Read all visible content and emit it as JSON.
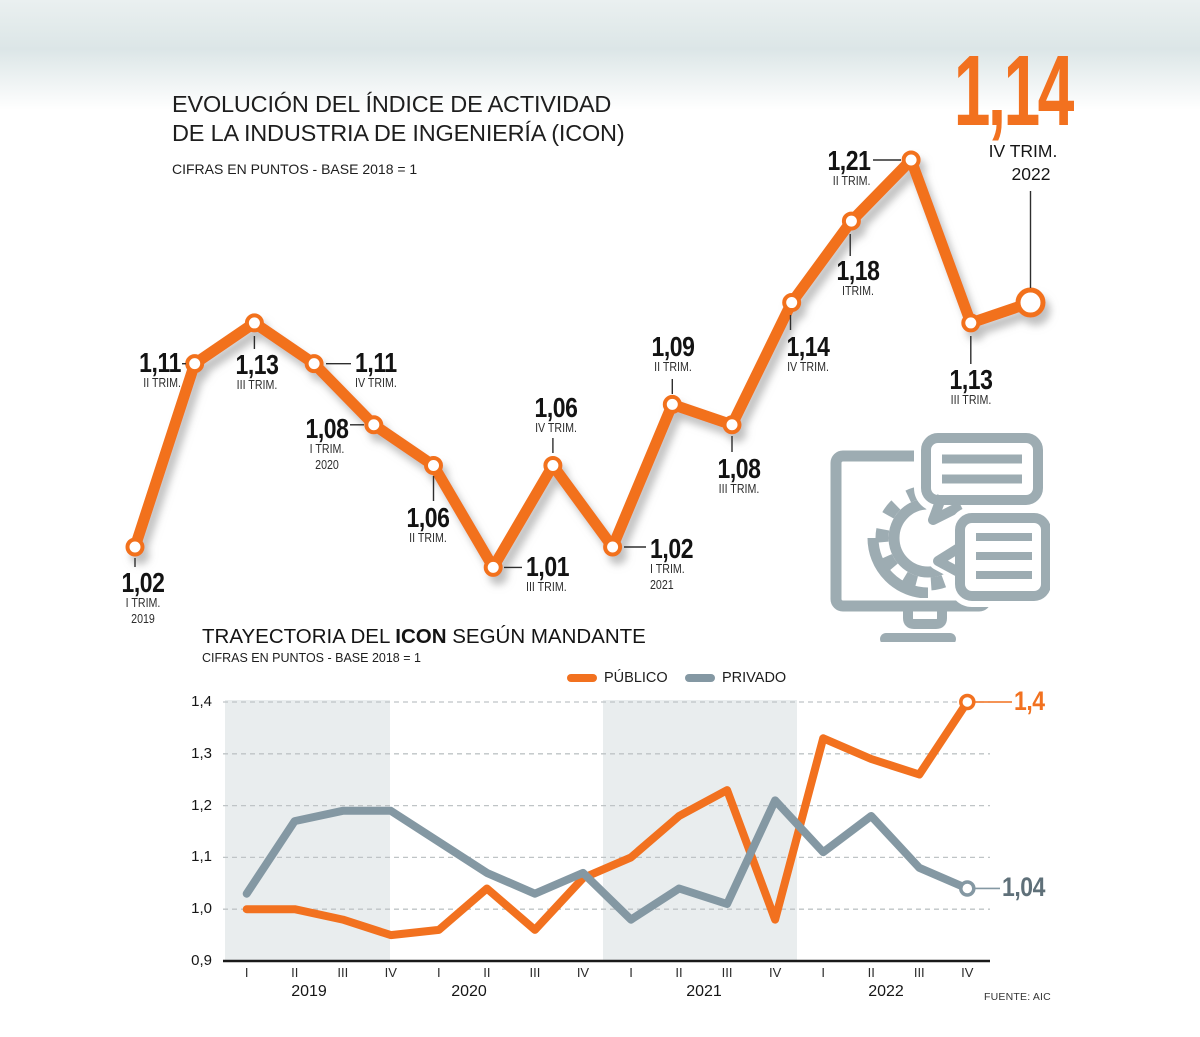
{
  "header": {
    "title_line1": "EVOLUCIÓN DEL ÍNDICE DE ACTIVIDAD",
    "title_line2": "DE LA INDUSTRIA DE INGENIERÍA (ICON)",
    "subtitle": "CIFRAS EN PUNTOS - BASE 2018 = 1"
  },
  "highlight": {
    "value": "1,14",
    "period_line1": "IV TRIM.",
    "period_line2": "2022"
  },
  "icon": {
    "name": "computer-chat-icon",
    "color": "#9DACB2"
  },
  "colors": {
    "accent_orange": "#F2711F",
    "gray_blue": "#8498A3",
    "band": "#E9EDEE",
    "end_label_gray": "#5F7079",
    "leader": "#2e2e2e"
  },
  "chart_data": [
    {
      "type": "line",
      "title": "EVOLUCIÓN DEL ÍNDICE DE ACTIVIDAD DE LA INDUSTRIA DE INGENIERÍA (ICON)",
      "subtitle": "CIFRAS EN PUNTOS - BASE 2018 = 1",
      "x": [
        "2019 I",
        "2019 II",
        "2019 III",
        "2019 IV",
        "2020 I",
        "2020 II",
        "2020 III",
        "2020 IV",
        "2021 I",
        "2021 II",
        "2021 III",
        "2021 IV",
        "2022 I",
        "2022 II",
        "2022 III",
        "2022 IV"
      ],
      "values": [
        1.02,
        1.11,
        1.13,
        1.11,
        1.08,
        1.06,
        1.01,
        1.06,
        1.02,
        1.09,
        1.08,
        1.14,
        1.18,
        1.21,
        1.13,
        1.14
      ],
      "point_labels": [
        {
          "value": "1,02",
          "trim": "I TRIM.",
          "year": "2019"
        },
        {
          "value": "1,11",
          "trim": "II TRIM.",
          "year": null
        },
        {
          "value": "1,13",
          "trim": "III TRIM.",
          "year": null
        },
        {
          "value": "1,11",
          "trim": "IV TRIM.",
          "year": null
        },
        {
          "value": "1,08",
          "trim": "I TRIM.",
          "year": "2020"
        },
        {
          "value": "1,06",
          "trim": "II TRIM.",
          "year": null
        },
        {
          "value": "1,01",
          "trim": "III TRIM.",
          "year": null
        },
        {
          "value": "1,06",
          "trim": "IV TRIM.",
          "year": null
        },
        {
          "value": "1,02",
          "trim": "I TRIM.",
          "year": "2021"
        },
        {
          "value": "1,09",
          "trim": "II TRIM.",
          "year": null
        },
        {
          "value": "1,08",
          "trim": "III TRIM.",
          "year": null
        },
        {
          "value": "1,14",
          "trim": "IV TRIM.",
          "year": null
        },
        {
          "value": "1,18",
          "trim": "ITRIM.",
          "year": null
        },
        {
          "value": "1,21",
          "trim": "II TRIM.",
          "year": null
        },
        {
          "value": "1,13",
          "trim": "III TRIM.",
          "year": null
        },
        {
          "value": "1,14",
          "trim": "IV TRIM.",
          "year": "2022"
        }
      ],
      "color": "#F2711F",
      "grid": false,
      "ylim": [
        0.95,
        1.25
      ]
    },
    {
      "type": "line",
      "title_prefix": "TRAYECTORIA DEL ",
      "title_bold": "ICON",
      "title_suffix": " SEGÚN MANDANTE",
      "subtitle": "CIFRAS EN PUNTOS - BASE 2018 = 1",
      "categories": [
        "I",
        "II",
        "III",
        "IV",
        "I",
        "II",
        "III",
        "IV",
        "I",
        "II",
        "III",
        "IV",
        "I",
        "II",
        "III",
        "IV"
      ],
      "years": [
        "2019",
        "2020",
        "2021",
        "2022"
      ],
      "series": [
        {
          "name": "PÚBLICO",
          "color": "#F2711F",
          "values": [
            1.0,
            1.0,
            0.98,
            0.95,
            0.96,
            1.04,
            0.96,
            1.06,
            1.1,
            1.18,
            1.23,
            0.98,
            1.33,
            1.29,
            1.26,
            1.4
          ]
        },
        {
          "name": "PRIVADO",
          "color": "#8498A3",
          "values": [
            1.03,
            1.17,
            1.19,
            1.19,
            1.13,
            1.07,
            1.03,
            1.07,
            0.98,
            1.04,
            1.01,
            1.21,
            1.11,
            1.18,
            1.08,
            1.04
          ]
        }
      ],
      "ylim": [
        0.9,
        1.4
      ],
      "yticks": [
        "1,4",
        "1,3",
        "1,2",
        "1,1",
        "1,0",
        "0,9"
      ],
      "grid": "dashed-horizontal",
      "legend_position": "top-right",
      "shaded_year_bands": [
        "2019",
        "2021"
      ],
      "end_labels": [
        {
          "series": "PÚBLICO",
          "text": "1,4"
        },
        {
          "series": "PRIVADO",
          "text": "1,04"
        }
      ],
      "source": "FUENTE: AIC"
    }
  ]
}
